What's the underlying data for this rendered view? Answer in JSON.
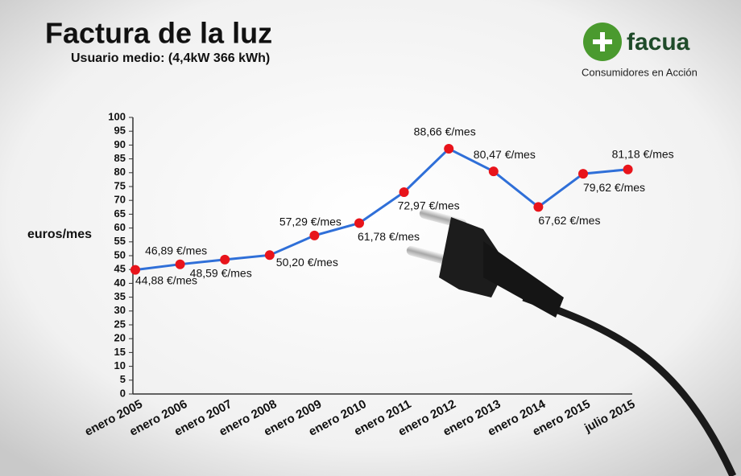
{
  "chart_data": {
    "type": "line",
    "title": "Factura de la luz",
    "subtitle": "Usuario medio: (4,4kW 366 kWh)",
    "y_label": "euros/mes",
    "categories": [
      "enero 2005",
      "enero 2006",
      "enero 2007",
      "enero 2008",
      "enero 2009",
      "enero 2010",
      "enero 2011",
      "enero 2012",
      "enero 2013",
      "enero 2014",
      "enero 2015",
      "julio 2015"
    ],
    "values": [
      44.88,
      46.89,
      48.59,
      50.2,
      57.29,
      61.78,
      72.97,
      88.66,
      80.47,
      67.62,
      79.62,
      81.18
    ],
    "value_labels": [
      "44,88 €/mes",
      "46,89 €/mes",
      "48,59 €/mes",
      "50,20 €/mes",
      "57,29 €/mes",
      "61,78 €/mes",
      "72,97 €/mes",
      "88,66 €/mes",
      "80,47 €/mes",
      "67,62 €/mes",
      "79,62 €/mes",
      "81,18 €/mes"
    ],
    "color": "#2f6fd8",
    "marker_color": "#e8141b",
    "ylim": [
      0,
      100
    ],
    "yticks": [
      0,
      5,
      10,
      15,
      20,
      25,
      30,
      35,
      40,
      45,
      50,
      55,
      60,
      65,
      70,
      75,
      80,
      85,
      90,
      95,
      100
    ]
  },
  "logo": {
    "name": "facua",
    "tagline": "Consumidores en Acción"
  }
}
